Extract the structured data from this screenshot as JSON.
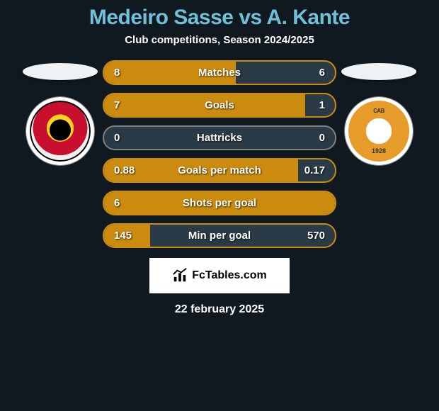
{
  "title_color": "#6fc0d8",
  "title_parts": {
    "p1": "Medeiro Sasse",
    "vs": " vs ",
    "p2": "A. Kante"
  },
  "subtitle": "Club competitions, Season 2024/2025",
  "left_fill_color": "#cb8b0f",
  "border_colors": [
    "#cb8b0f",
    "#cb8b0f",
    "#808080",
    "#cb8b0f",
    "#cb8b0f",
    "#cb8b0f"
  ],
  "right_track_color": "#2a3a46",
  "bars": [
    {
      "label": "Matches",
      "left": "8",
      "right": "6",
      "left_num": 8,
      "right_num": 6,
      "fill_pct": 57
    },
    {
      "label": "Goals",
      "left": "7",
      "right": "1",
      "left_num": 7,
      "right_num": 1,
      "fill_pct": 87
    },
    {
      "label": "Hattricks",
      "left": "0",
      "right": "0",
      "left_num": 0,
      "right_num": 0,
      "fill_pct": 0
    },
    {
      "label": "Goals per match",
      "left": "0.88",
      "right": "0.17",
      "left_num": 0.88,
      "right_num": 0.17,
      "fill_pct": 84
    },
    {
      "label": "Shots per goal",
      "left": "6",
      "right": "",
      "left_num": 6,
      "right_num": 0,
      "fill_pct": 100
    },
    {
      "label": "Min per goal",
      "left": "145",
      "right": "570",
      "left_num": 145,
      "right_num": 570,
      "fill_pct": 20
    }
  ],
  "watermark_text": "FcTables.com",
  "date": "22 february 2025"
}
